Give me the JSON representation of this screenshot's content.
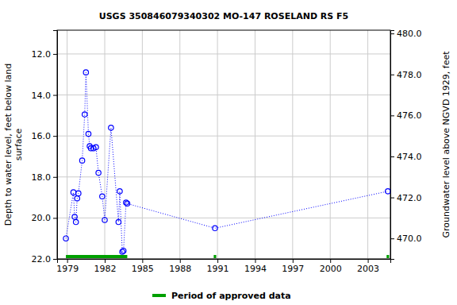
{
  "chart_data": {
    "type": "line",
    "title": "USGS 350846079340302 MO-147 ROSELAND RS F5",
    "ylabel": [
      "Depth to water level, feet below land",
      "surface"
    ],
    "y2label": "Groundwater level above NGVD 1929, feet",
    "x": [
      1978.9,
      1979.5,
      1979.6,
      1979.7,
      1979.8,
      1979.9,
      1980.2,
      1980.4,
      1980.5,
      1980.7,
      1980.8,
      1980.9,
      1981.1,
      1981.3,
      1981.5,
      1981.8,
      1982.0,
      1982.5,
      1983.1,
      1983.2,
      1983.4,
      1983.5,
      1983.7,
      1983.8,
      1990.8,
      2004.6
    ],
    "series": [
      {
        "color": "#0000ff",
        "marker": "circle",
        "line_style": "dotted",
        "values": [
          21.0,
          18.75,
          19.95,
          20.2,
          19.05,
          18.8,
          17.2,
          14.95,
          12.9,
          15.9,
          16.5,
          16.6,
          16.6,
          16.55,
          17.8,
          18.95,
          20.1,
          15.6,
          20.2,
          18.7,
          21.65,
          21.6,
          19.25,
          19.3,
          20.5,
          18.7
        ]
      }
    ],
    "approved_periods": {
      "name": "Period of approved data",
      "color": "#00a000",
      "ranges": [
        [
          1978.9,
          1983.8
        ],
        [
          1990.7,
          1990.9
        ],
        [
          2004.5,
          2004.7
        ]
      ]
    },
    "xlim": [
      1978.2,
      2004.8
    ],
    "xticks": [
      1979,
      1982,
      1985,
      1988,
      1991,
      1994,
      1997,
      2000,
      2003
    ],
    "ylim": [
      22,
      10.84
    ],
    "yticks": [
      {
        "value": 12,
        "label": "12.0"
      },
      {
        "value": 14,
        "label": "14.0"
      },
      {
        "value": 16,
        "label": "16.0"
      },
      {
        "value": 18,
        "label": "18.0"
      },
      {
        "value": 20,
        "label": "20.0"
      },
      {
        "value": 22,
        "label": "22.0"
      }
    ],
    "y2lim": [
      469.0,
      480.16
    ],
    "y2ticks": [
      {
        "value": 470,
        "label": "470.0"
      },
      {
        "value": 472,
        "label": "472.0"
      },
      {
        "value": 474,
        "label": "474.0"
      },
      {
        "value": 476,
        "label": "476.0"
      },
      {
        "value": 478,
        "label": "478.0"
      },
      {
        "value": 480,
        "label": "480.0"
      }
    ],
    "grid": true,
    "legend": "bottom"
  }
}
